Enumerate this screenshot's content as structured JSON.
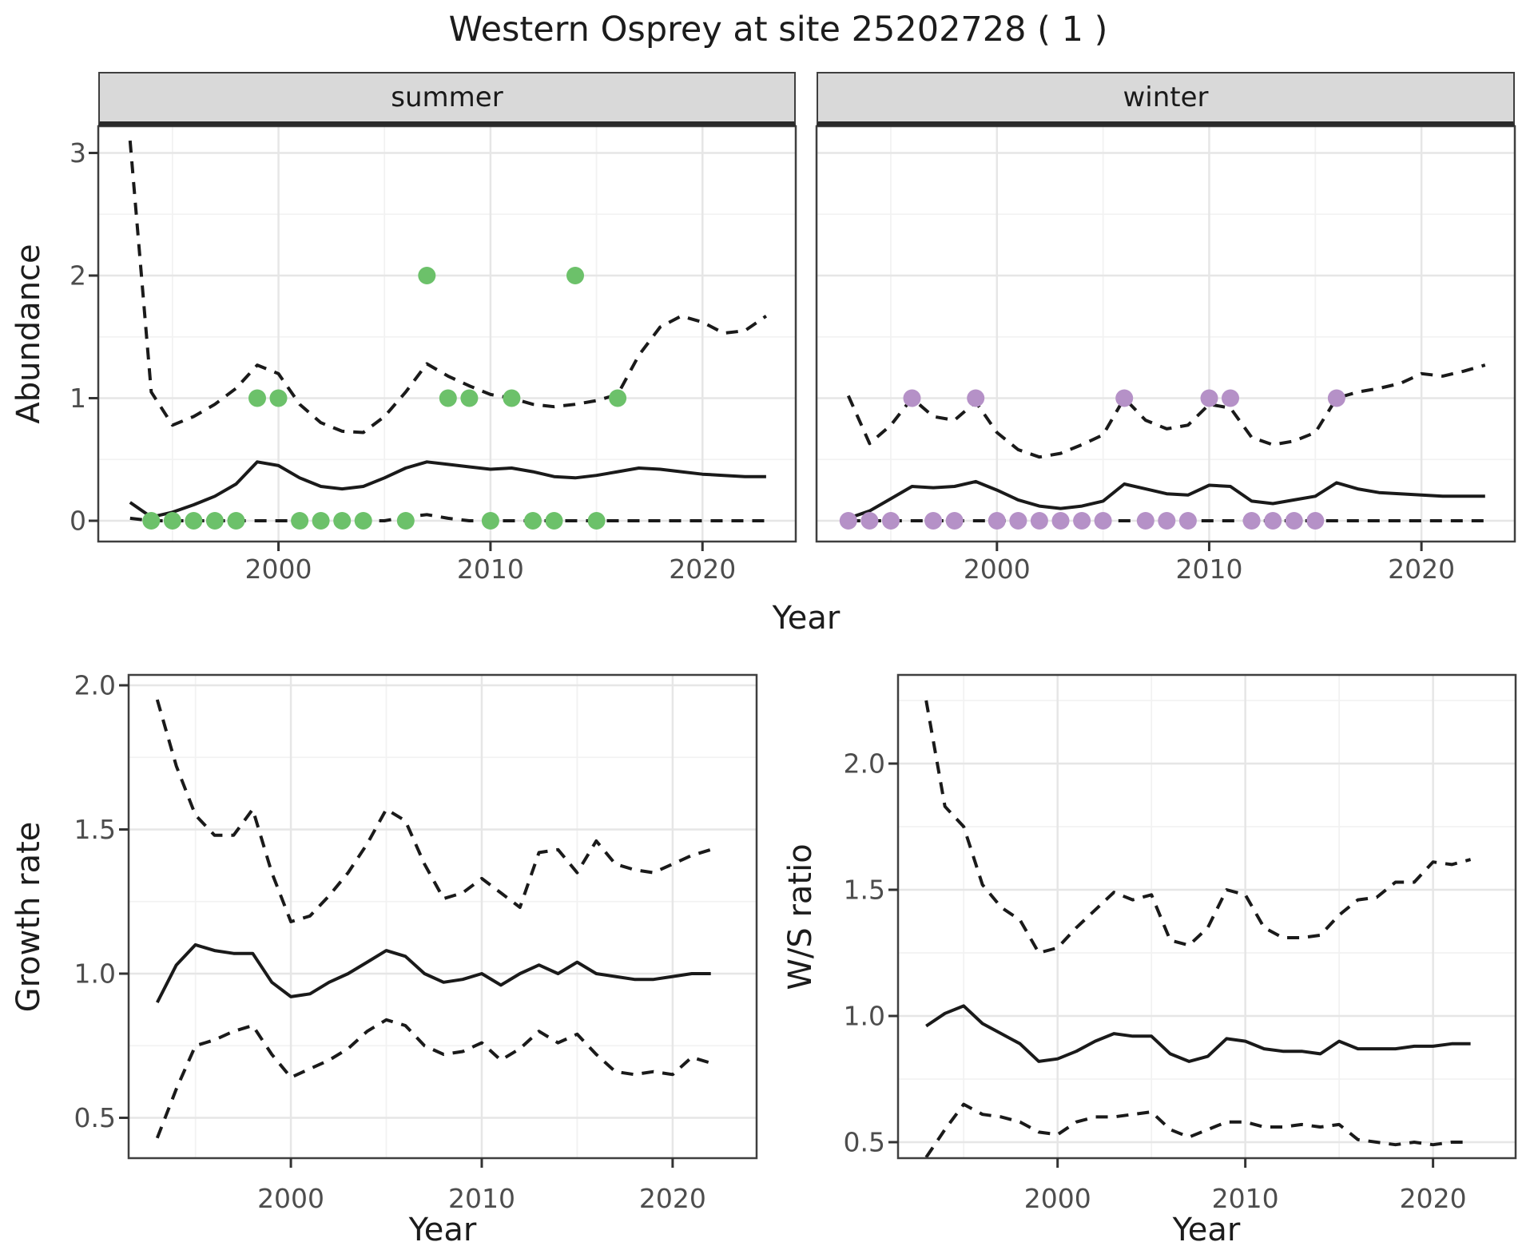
{
  "title": "Western Osprey at site 25202728 ( 1 )",
  "colors": {
    "summer_points": "#6cc16a",
    "winter_points": "#b591c7",
    "line": "#1a1a1a",
    "strip_fill": "#d9d9d9",
    "grid_major": "#e6e6e6",
    "grid_minor": "#f2f2f2",
    "tick_text": "#4d4d4d",
    "panel_border": "#3f3f3f"
  },
  "chart_data": [
    {
      "type": "line",
      "facet": "summer",
      "ylabel": "Abundance",
      "xlabel": "Year",
      "point_color": "#6cc16a",
      "xlim": [
        1991.5,
        2024.4
      ],
      "ylim": [
        -0.17,
        3.22
      ],
      "xticks": [
        2000,
        2010,
        2020
      ],
      "xtick_labels": [
        "2000",
        "2010",
        "2020"
      ],
      "xticks_minor": [
        1995,
        2005,
        2015
      ],
      "yticks": [
        0,
        1,
        2,
        3
      ],
      "ytick_labels": [
        "0",
        "1",
        "2",
        "3"
      ],
      "yticks_minor": [
        0.5,
        1.5,
        2.5
      ],
      "grid": true,
      "legend": "none",
      "years": [
        1993,
        1994,
        1995,
        1996,
        1997,
        1998,
        1999,
        2000,
        2001,
        2002,
        2003,
        2004,
        2005,
        2006,
        2007,
        2008,
        2009,
        2010,
        2011,
        2012,
        2013,
        2014,
        2015,
        2016,
        2017,
        2018,
        2019,
        2020,
        2021,
        2022,
        2023
      ],
      "series": [
        {
          "name": "upper_ci",
          "style": "dashed",
          "values": [
            3.1,
            1.05,
            0.78,
            0.85,
            0.95,
            1.08,
            1.27,
            1.2,
            0.95,
            0.8,
            0.73,
            0.72,
            0.85,
            1.05,
            1.28,
            1.18,
            1.1,
            1.03,
            1.0,
            0.95,
            0.93,
            0.95,
            0.98,
            1.03,
            1.35,
            1.58,
            1.67,
            1.62,
            1.53,
            1.55,
            1.67
          ]
        },
        {
          "name": "mean",
          "style": "solid",
          "values": [
            0.15,
            0.03,
            0.07,
            0.13,
            0.2,
            0.3,
            0.48,
            0.45,
            0.35,
            0.28,
            0.26,
            0.28,
            0.35,
            0.43,
            0.48,
            0.46,
            0.44,
            0.42,
            0.43,
            0.4,
            0.36,
            0.35,
            0.37,
            0.4,
            0.43,
            0.42,
            0.4,
            0.38,
            0.37,
            0.36,
            0.36
          ]
        },
        {
          "name": "lower_ci",
          "style": "dashed",
          "values": [
            0.02,
            0,
            0,
            0,
            0,
            0,
            0,
            0,
            0,
            0,
            0,
            0,
            0,
            0.03,
            0.05,
            0.02,
            0,
            0,
            0,
            0,
            0,
            0,
            0,
            0,
            0,
            0,
            0,
            0,
            0,
            0,
            0
          ]
        }
      ],
      "observations": [
        [
          1994,
          0
        ],
        [
          1995,
          0
        ],
        [
          1996,
          0
        ],
        [
          1997,
          0
        ],
        [
          1998,
          0
        ],
        [
          1999,
          1
        ],
        [
          2000,
          1
        ],
        [
          2001,
          0
        ],
        [
          2002,
          0
        ],
        [
          2003,
          0
        ],
        [
          2004,
          0
        ],
        [
          2006,
          0
        ],
        [
          2007,
          2
        ],
        [
          2008,
          1
        ],
        [
          2009,
          1
        ],
        [
          2010,
          0
        ],
        [
          2011,
          1
        ],
        [
          2012,
          0
        ],
        [
          2013,
          0
        ],
        [
          2014,
          2
        ],
        [
          2015,
          0
        ],
        [
          2016,
          1
        ]
      ]
    },
    {
      "type": "line",
      "facet": "winter",
      "ylabel": "Abundance",
      "xlabel": "Year",
      "point_color": "#b591c7",
      "xlim": [
        1991.5,
        2024.4
      ],
      "ylim": [
        -0.17,
        3.22
      ],
      "xticks": [
        2000,
        2010,
        2020
      ],
      "xtick_labels": [
        "2000",
        "2010",
        "2020"
      ],
      "xticks_minor": [
        1995,
        2005,
        2015
      ],
      "yticks": [
        0,
        1,
        2,
        3
      ],
      "ytick_labels": [
        "0",
        "1",
        "2",
        "3"
      ],
      "yticks_minor": [
        0.5,
        1.5,
        2.5
      ],
      "grid": true,
      "legend": "none",
      "years": [
        1993,
        1994,
        1995,
        1996,
        1997,
        1998,
        1999,
        2000,
        2001,
        2002,
        2003,
        2004,
        2005,
        2006,
        2007,
        2008,
        2009,
        2010,
        2011,
        2012,
        2013,
        2014,
        2015,
        2016,
        2017,
        2018,
        2019,
        2020,
        2021,
        2022,
        2023
      ],
      "series": [
        {
          "name": "upper_ci",
          "style": "dashed",
          "values": [
            1.02,
            0.63,
            0.78,
            1.0,
            0.85,
            0.82,
            0.97,
            0.72,
            0.58,
            0.52,
            0.55,
            0.62,
            0.7,
            1.0,
            0.82,
            0.75,
            0.78,
            0.95,
            0.92,
            0.68,
            0.62,
            0.65,
            0.72,
            1.0,
            1.05,
            1.08,
            1.12,
            1.2,
            1.18,
            1.22,
            1.27
          ]
        },
        {
          "name": "mean",
          "style": "solid",
          "values": [
            0.02,
            0.08,
            0.18,
            0.28,
            0.27,
            0.28,
            0.32,
            0.25,
            0.17,
            0.12,
            0.1,
            0.12,
            0.16,
            0.3,
            0.26,
            0.22,
            0.21,
            0.29,
            0.28,
            0.16,
            0.14,
            0.17,
            0.2,
            0.31,
            0.26,
            0.23,
            0.22,
            0.21,
            0.2,
            0.2,
            0.2
          ]
        },
        {
          "name": "lower_ci",
          "style": "dashed",
          "values": [
            0,
            0,
            0,
            0,
            0,
            0,
            0,
            0,
            0,
            0,
            0,
            0,
            0,
            0,
            0,
            0,
            0,
            0,
            0,
            0,
            0,
            0,
            0,
            0,
            0,
            0,
            0,
            0,
            0,
            0,
            0
          ]
        }
      ],
      "observations": [
        [
          1993,
          0
        ],
        [
          1994,
          0
        ],
        [
          1995,
          0
        ],
        [
          1996,
          1
        ],
        [
          1997,
          0
        ],
        [
          1998,
          0
        ],
        [
          1999,
          1
        ],
        [
          2000,
          0
        ],
        [
          2001,
          0
        ],
        [
          2002,
          0
        ],
        [
          2003,
          0
        ],
        [
          2004,
          0
        ],
        [
          2005,
          0
        ],
        [
          2006,
          1
        ],
        [
          2007,
          0
        ],
        [
          2008,
          0
        ],
        [
          2009,
          0
        ],
        [
          2010,
          1
        ],
        [
          2011,
          1
        ],
        [
          2012,
          0
        ],
        [
          2013,
          0
        ],
        [
          2014,
          0
        ],
        [
          2015,
          0
        ],
        [
          2016,
          1
        ]
      ]
    },
    {
      "type": "line",
      "facet": null,
      "ylabel": "Growth rate",
      "xlabel": "Year",
      "xlim": [
        1991.5,
        2024.4
      ],
      "ylim": [
        0.36,
        2.03
      ],
      "xticks": [
        2000,
        2010,
        2020
      ],
      "xtick_labels": [
        "2000",
        "2010",
        "2020"
      ],
      "xticks_minor": [
        1995,
        2005,
        2015
      ],
      "yticks": [
        0.5,
        1.0,
        1.5,
        2.0
      ],
      "ytick_labels": [
        "0.5",
        "1.0",
        "1.5",
        "2.0"
      ],
      "yticks_minor": [
        0.75,
        1.25,
        1.75
      ],
      "grid": true,
      "legend": "none",
      "years": [
        1993,
        1994,
        1995,
        1996,
        1997,
        1998,
        1999,
        2000,
        2001,
        2002,
        2003,
        2004,
        2005,
        2006,
        2007,
        2008,
        2009,
        2010,
        2011,
        2012,
        2013,
        2014,
        2015,
        2016,
        2017,
        2018,
        2019,
        2020,
        2021,
        2022
      ],
      "series": [
        {
          "name": "upper_ci",
          "style": "dashed",
          "values": [
            1.95,
            1.72,
            1.55,
            1.48,
            1.48,
            1.57,
            1.35,
            1.18,
            1.2,
            1.27,
            1.35,
            1.45,
            1.57,
            1.53,
            1.38,
            1.26,
            1.28,
            1.33,
            1.28,
            1.23,
            1.42,
            1.43,
            1.35,
            1.46,
            1.38,
            1.36,
            1.35,
            1.38,
            1.41,
            1.43
          ]
        },
        {
          "name": "mean",
          "style": "solid",
          "values": [
            0.9,
            1.03,
            1.1,
            1.08,
            1.07,
            1.07,
            0.97,
            0.92,
            0.93,
            0.97,
            1.0,
            1.04,
            1.08,
            1.06,
            1.0,
            0.97,
            0.98,
            1.0,
            0.96,
            1.0,
            1.03,
            1.0,
            1.04,
            1.0,
            0.99,
            0.98,
            0.98,
            0.99,
            1.0,
            1.0
          ]
        },
        {
          "name": "lower_ci",
          "style": "dashed",
          "values": [
            0.43,
            0.6,
            0.75,
            0.77,
            0.8,
            0.82,
            0.72,
            0.64,
            0.67,
            0.7,
            0.74,
            0.8,
            0.84,
            0.82,
            0.75,
            0.72,
            0.73,
            0.76,
            0.7,
            0.74,
            0.8,
            0.76,
            0.79,
            0.72,
            0.66,
            0.65,
            0.66,
            0.65,
            0.71,
            0.69
          ]
        }
      ],
      "observations": []
    },
    {
      "type": "line",
      "facet": null,
      "ylabel": "W/S ratio",
      "xlabel": "Year",
      "xlim": [
        1991.5,
        2024.4
      ],
      "ylim": [
        0.44,
        2.34
      ],
      "xticks": [
        2000,
        2010,
        2020
      ],
      "xtick_labels": [
        "2000",
        "2010",
        "2020"
      ],
      "xticks_minor": [
        1995,
        2005,
        2015
      ],
      "yticks": [
        0.5,
        1.0,
        1.5,
        2.0
      ],
      "ytick_labels": [
        "0.5",
        "1.0",
        "1.5",
        "2.0"
      ],
      "yticks_minor": [
        0.75,
        1.25,
        1.75,
        2.25
      ],
      "grid": true,
      "legend": "none",
      "years": [
        1993,
        1994,
        1995,
        1996,
        1997,
        1998,
        1999,
        2000,
        2001,
        2002,
        2003,
        2004,
        2005,
        2006,
        2007,
        2008,
        2009,
        2010,
        2011,
        2012,
        2013,
        2014,
        2015,
        2016,
        2017,
        2018,
        2019,
        2020,
        2021,
        2022
      ],
      "series": [
        {
          "name": "upper_ci",
          "style": "dashed",
          "values": [
            2.25,
            1.83,
            1.75,
            1.52,
            1.43,
            1.38,
            1.25,
            1.27,
            1.35,
            1.42,
            1.49,
            1.46,
            1.48,
            1.3,
            1.28,
            1.35,
            1.5,
            1.48,
            1.35,
            1.31,
            1.31,
            1.32,
            1.4,
            1.46,
            1.47,
            1.53,
            1.53,
            1.61,
            1.6,
            1.62
          ]
        },
        {
          "name": "mean",
          "style": "solid",
          "values": [
            0.96,
            1.01,
            1.04,
            0.97,
            0.93,
            0.89,
            0.82,
            0.83,
            0.86,
            0.9,
            0.93,
            0.92,
            0.92,
            0.85,
            0.82,
            0.84,
            0.91,
            0.9,
            0.87,
            0.86,
            0.86,
            0.85,
            0.9,
            0.87,
            0.87,
            0.87,
            0.88,
            0.88,
            0.89,
            0.89
          ]
        },
        {
          "name": "lower_ci",
          "style": "dashed",
          "values": [
            0.44,
            0.55,
            0.65,
            0.61,
            0.6,
            0.58,
            0.54,
            0.53,
            0.58,
            0.6,
            0.6,
            0.61,
            0.62,
            0.55,
            0.52,
            0.55,
            0.58,
            0.58,
            0.56,
            0.56,
            0.57,
            0.56,
            0.57,
            0.51,
            0.5,
            0.49,
            0.5,
            0.49,
            0.5,
            0.5
          ]
        }
      ],
      "observations": []
    }
  ]
}
